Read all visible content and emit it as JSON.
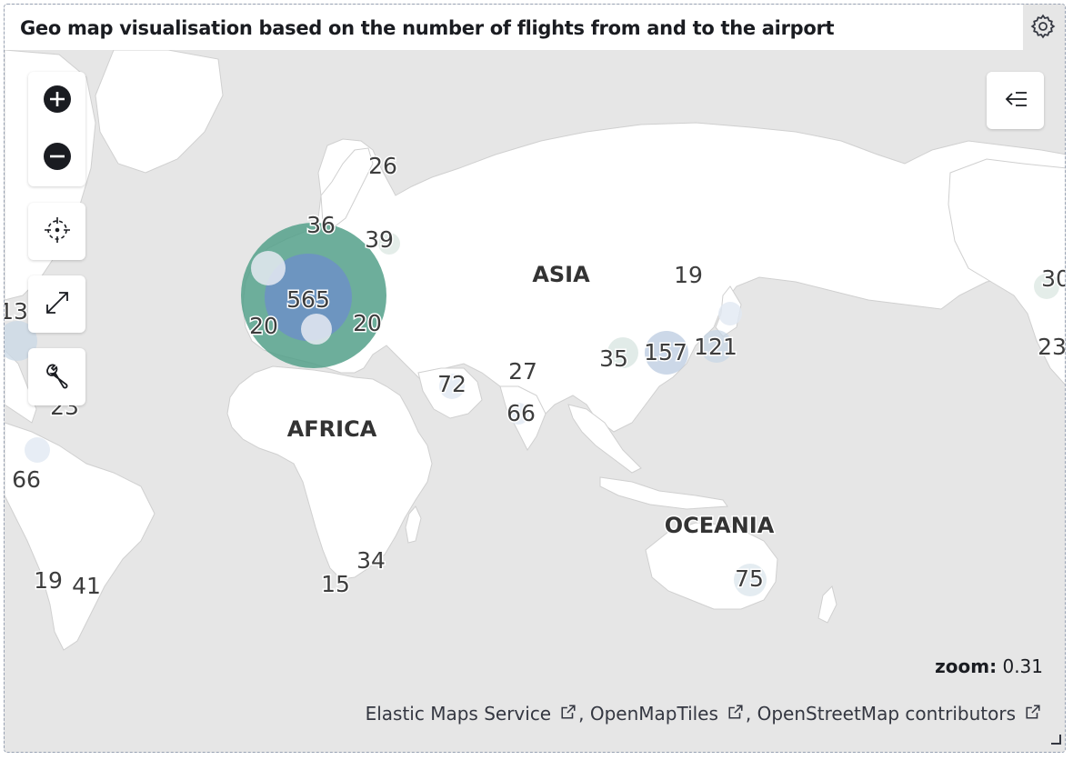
{
  "panel": {
    "title": "Geo map visualisation based on the number of flights from and to the airport",
    "settings_icon": "gear-icon"
  },
  "controls": {
    "zoom_in_icon": "plus-circle-icon",
    "zoom_out_icon": "minus-circle-icon",
    "locate_icon": "crosshairs-icon",
    "fullscreen_icon": "expand-icon",
    "tools_icon": "wrench-icon",
    "legend_toggle_icon": "menu-collapse-icon"
  },
  "continents": [
    "ASIA",
    "AFRICA",
    "OCEANIA"
  ],
  "clusters": [
    {
      "count": "26",
      "size": "small"
    },
    {
      "count": "36",
      "size": "small"
    },
    {
      "count": "39",
      "size": "small"
    },
    {
      "count": "565",
      "size": "large"
    },
    {
      "count": "20",
      "size": "small"
    },
    {
      "count": "20",
      "size": "small"
    },
    {
      "count": "13",
      "size": "small"
    },
    {
      "count": "23",
      "size": "small"
    },
    {
      "count": "66",
      "size": "small"
    },
    {
      "count": "19",
      "size": "small"
    },
    {
      "count": "41",
      "size": "small"
    },
    {
      "count": "15",
      "size": "small"
    },
    {
      "count": "34",
      "size": "small"
    },
    {
      "count": "72",
      "size": "small"
    },
    {
      "count": "27",
      "size": "small"
    },
    {
      "count": "66",
      "size": "small"
    },
    {
      "count": "19",
      "size": "small"
    },
    {
      "count": "35",
      "size": "small"
    },
    {
      "count": "157",
      "size": "medium"
    },
    {
      "count": "121",
      "size": "small"
    },
    {
      "count": "30",
      "size": "small"
    },
    {
      "count": "23",
      "size": "small"
    },
    {
      "count": "75",
      "size": "small"
    }
  ],
  "colors": {
    "ocean": "#e6e6e6",
    "land": "#ffffff",
    "cluster_large": "#54a089",
    "cluster_medium": "#6d91c7",
    "cluster_small": "#dde7ee"
  },
  "zoom": {
    "label": "zoom:",
    "value": "0.31"
  },
  "attribution": [
    {
      "label": "Elastic Maps Service"
    },
    {
      "label": ", OpenMapTiles"
    },
    {
      "label": ", OpenStreetMap contributors"
    }
  ]
}
